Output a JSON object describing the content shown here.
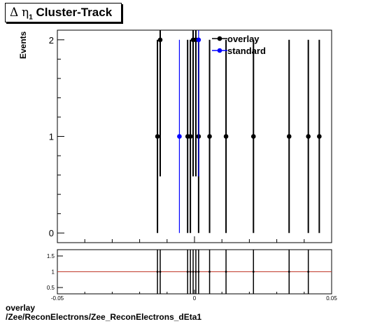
{
  "title": {
    "symbol": "Δ",
    "eta": "η",
    "subscript": "1",
    "text": "Cluster-Track"
  },
  "footer": {
    "line1": "overlay",
    "line2": "/Zee/ReconElectrons/Zee_ReconElectrons_dEta1"
  },
  "chart_data": [
    {
      "type": "scatter",
      "ylabel": "Events",
      "xlim": [
        -0.05,
        0.05
      ],
      "ylim": [
        -0.1,
        2.1
      ],
      "yticks": [
        "0",
        "1",
        "2"
      ],
      "legend_position": "top-right",
      "series": [
        {
          "name": "overlay",
          "color": "#000000",
          "points": [
            {
              "x": -0.0135,
              "y": 1
            },
            {
              "x": -0.0125,
              "y": 2
            },
            {
              "x": -0.0025,
              "y": 1
            },
            {
              "x": -0.0015,
              "y": 1
            },
            {
              "x": -0.0005,
              "y": 2
            },
            {
              "x": 0.0005,
              "y": 2
            },
            {
              "x": 0.0015,
              "y": 1
            },
            {
              "x": 0.0055,
              "y": 1
            },
            {
              "x": 0.0115,
              "y": 1
            },
            {
              "x": 0.0215,
              "y": 1
            },
            {
              "x": 0.0345,
              "y": 1
            },
            {
              "x": 0.0415,
              "y": 1
            },
            {
              "x": 0.0455,
              "y": 1
            }
          ]
        },
        {
          "name": "standard",
          "color": "#0000ff",
          "points": [
            {
              "x": -0.0055,
              "y": 1
            },
            {
              "x": 0.0015,
              "y": 2
            }
          ]
        }
      ]
    },
    {
      "type": "scatter",
      "xlim": [
        -0.05,
        0.05
      ],
      "ylim": [
        0.3,
        1.7
      ],
      "xticks": [
        "-0.05",
        "0",
        "0.05"
      ],
      "yticks": [
        "0.5",
        "1",
        "1.5"
      ],
      "reference_line": {
        "y": 1,
        "color": "#c0392b"
      },
      "series": [
        {
          "name": "ratio",
          "color": "#000000",
          "points": [
            {
              "x": -0.0135,
              "y": 1
            },
            {
              "x": -0.0125,
              "y": 1
            },
            {
              "x": -0.0025,
              "y": 1
            },
            {
              "x": -0.0015,
              "y": 1
            },
            {
              "x": -0.0005,
              "y": 1
            },
            {
              "x": 0.0005,
              "y": 1
            },
            {
              "x": 0.0015,
              "y": 1
            },
            {
              "x": 0.0055,
              "y": 1
            },
            {
              "x": 0.0115,
              "y": 1
            },
            {
              "x": 0.0215,
              "y": 1
            },
            {
              "x": 0.0345,
              "y": 1
            },
            {
              "x": 0.0415,
              "y": 1
            }
          ]
        }
      ]
    }
  ]
}
